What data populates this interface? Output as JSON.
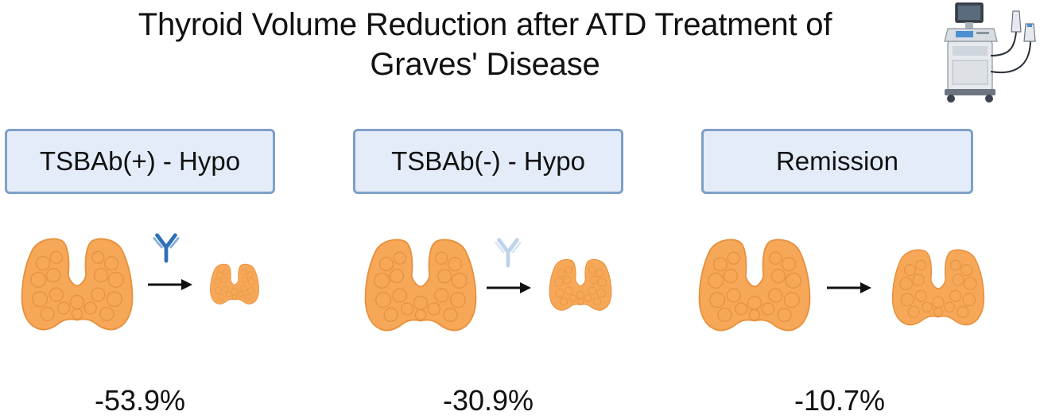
{
  "title": {
    "line1": "Thyroid Volume Reduction after ATD Treatment of",
    "line2": "Graves' Disease"
  },
  "groups": [
    {
      "label": "TSBAb(+) - Hypo",
      "reduction": "-53.9%",
      "reduction_value": -53.9
    },
    {
      "label": "TSBAb(-) - Hypo",
      "reduction": "-30.9%",
      "reduction_value": -30.9
    },
    {
      "label": "Remission",
      "reduction": "-10.7%",
      "reduction_value": -10.7
    }
  ],
  "icons": {
    "thyroid": "thyroid-gland-icon",
    "antibody": "antibody-icon",
    "arrow": "arrow-right-icon",
    "ultrasound": "ultrasound-machine-icon"
  },
  "colors": {
    "thyroid_fill": "#f6a858",
    "thyroid_stroke": "#e8903c",
    "box_fill": "#e3ecf8",
    "box_border": "#7f9fc9",
    "antibody_dark": "#2e6fb8",
    "antibody_light": "#bcd3ea"
  }
}
